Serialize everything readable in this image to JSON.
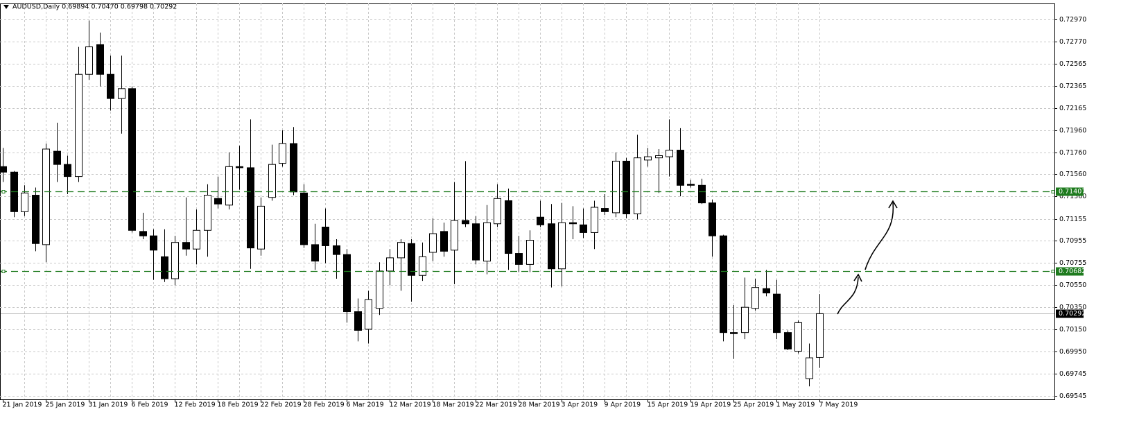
{
  "chart_data": {
    "type": "candlestick",
    "title": "AUDUSD,Daily  0.69894 0.70470 0.69798 0.70292",
    "categories": [
      "21 Jan 2019",
      null,
      null,
      null,
      "25 Jan 2019",
      null,
      null,
      null,
      "31 Jan 2019",
      null,
      null,
      null,
      "6 Feb 2019",
      null,
      null,
      null,
      "12 Feb 2019",
      null,
      null,
      null,
      "18 Feb 2019",
      null,
      null,
      null,
      "22 Feb 2019",
      null,
      null,
      null,
      "28 Feb 2019",
      null,
      null,
      null,
      "6 Mar 2019",
      null,
      null,
      null,
      "12 Mar 2019",
      null,
      null,
      null,
      "18 Mar 2019",
      null,
      null,
      null,
      "22 Mar 2019",
      null,
      null,
      null,
      "28 Mar 2019",
      null,
      null,
      null,
      "3 Apr 2019",
      null,
      null,
      null,
      "9 Apr 2019",
      null,
      null,
      null,
      "15 Apr 2019",
      null,
      null,
      null,
      "19 Apr 2019",
      null,
      null,
      null,
      "25 Apr 2019",
      null,
      null,
      null,
      "1 May 2019",
      null,
      null,
      null,
      "7 May 2019"
    ],
    "open": [
      0.7163,
      0.7158,
      0.7122,
      0.7137,
      0.7092,
      0.7177,
      0.7165,
      0.7154,
      0.7247,
      0.7274,
      0.7247,
      0.7225,
      0.7234,
      0.7104,
      0.71,
      0.7081,
      0.7061,
      0.7094,
      0.7088,
      0.7105,
      0.7134,
      0.7128,
      0.7163,
      0.7162,
      0.7088,
      0.7135,
      0.7166,
      0.7184,
      0.7139,
      0.7092,
      0.7108,
      0.7091,
      0.7083,
      0.7031,
      0.7015,
      0.7034,
      0.7068,
      0.708,
      0.7093,
      0.7064,
      0.7085,
      0.7104,
      0.7087,
      0.7114,
      0.7111,
      0.7077,
      0.7111,
      0.7132,
      0.7084,
      0.7074,
      0.7117,
      0.7111,
      0.707,
      0.7112,
      0.711,
      0.7103,
      0.7125,
      0.7121,
      0.7168,
      0.712,
      0.7169,
      0.7171,
      0.7172,
      0.7178,
      0.7147,
      0.7146,
      0.713,
      0.71,
      0.7012,
      0.7012,
      0.7034,
      0.7052,
      0.7047,
      0.7012,
      0.6995,
      0.697,
      0.69894
    ],
    "high": [
      0.718,
      0.7159,
      0.7146,
      0.7144,
      0.7184,
      0.7203,
      0.7173,
      0.7272,
      0.7296,
      0.7285,
      0.7264,
      0.7264,
      0.7236,
      0.7121,
      0.7106,
      0.7106,
      0.71,
      0.7135,
      0.7124,
      0.7147,
      0.7154,
      0.7176,
      0.7182,
      0.7206,
      0.7135,
      0.7183,
      0.7196,
      0.7199,
      0.7147,
      0.7111,
      0.7125,
      0.7097,
      0.7088,
      0.7043,
      0.705,
      0.7076,
      0.7088,
      0.7097,
      0.7097,
      0.7094,
      0.7116,
      0.7112,
      0.7149,
      0.7168,
      0.7118,
      0.7128,
      0.7147,
      0.7143,
      0.71,
      0.7105,
      0.7132,
      0.7129,
      0.713,
      0.7127,
      0.7125,
      0.7132,
      0.7138,
      0.7176,
      0.7171,
      0.7192,
      0.718,
      0.7179,
      0.7206,
      0.7198,
      0.7151,
      0.7152,
      0.7133,
      0.7101,
      0.7037,
      0.7062,
      0.7061,
      0.7069,
      0.706,
      0.7014,
      0.7023,
      0.7002,
      0.7047
    ],
    "low": [
      0.7149,
      0.7117,
      0.7118,
      0.7086,
      0.7076,
      0.7149,
      0.7138,
      0.7149,
      0.7242,
      0.7236,
      0.7214,
      0.7193,
      0.7103,
      0.7097,
      0.706,
      0.7058,
      0.7055,
      0.7082,
      0.7074,
      0.7081,
      0.7125,
      0.7124,
      0.7142,
      0.707,
      0.7082,
      0.7132,
      0.7163,
      0.7137,
      0.7089,
      0.7069,
      0.7075,
      0.7061,
      0.7021,
      0.7004,
      0.7002,
      0.7028,
      0.7055,
      0.705,
      0.704,
      0.7059,
      0.7077,
      0.7081,
      0.7056,
      0.7108,
      0.7074,
      0.7065,
      0.7108,
      0.7069,
      0.7067,
      0.7067,
      0.7108,
      0.7053,
      0.7054,
      0.7097,
      0.7098,
      0.7088,
      0.7119,
      0.7117,
      0.7116,
      0.7115,
      0.7163,
      0.7139,
      0.7154,
      0.7136,
      0.7144,
      0.7129,
      0.7081,
      0.7004,
      0.6988,
      0.7006,
      0.7032,
      0.7045,
      0.7006,
      0.6996,
      0.6993,
      0.6963,
      0.69798
    ],
    "close": [
      0.7158,
      0.7122,
      0.7139,
      0.7093,
      0.7179,
      0.7165,
      0.7154,
      0.7247,
      0.7272,
      0.7247,
      0.7225,
      0.7234,
      0.7105,
      0.71,
      0.7087,
      0.7061,
      0.7094,
      0.7088,
      0.7105,
      0.7137,
      0.7129,
      0.7163,
      0.7162,
      0.7089,
      0.7127,
      0.7165,
      0.7184,
      0.714,
      0.7092,
      0.7077,
      0.7091,
      0.7083,
      0.7031,
      0.7014,
      0.7042,
      0.7068,
      0.708,
      0.7094,
      0.7064,
      0.7081,
      0.7102,
      0.7086,
      0.7114,
      0.7111,
      0.7078,
      0.7112,
      0.7134,
      0.7084,
      0.7074,
      0.7096,
      0.711,
      0.707,
      0.7112,
      0.7111,
      0.7103,
      0.7126,
      0.7122,
      0.7168,
      0.712,
      0.7171,
      0.7172,
      0.7173,
      0.7178,
      0.7146,
      0.7146,
      0.713,
      0.71,
      0.7012,
      0.7011,
      0.7035,
      0.7053,
      0.7048,
      0.7012,
      0.6997,
      0.7021,
      0.6989,
      0.70292
    ],
    "up_color": "#ffffff",
    "down_color": "#000000",
    "levels": [
      {
        "value": 0.71407,
        "color": "#1e7b1e"
      },
      {
        "value": 0.70682,
        "color": "#1e7b1e"
      }
    ],
    "last_price": {
      "value": 0.70292,
      "color": "#c0c0c0"
    },
    "ylim": [
      0.69512,
      0.73115
    ],
    "yticks": [
      {
        "value": 0.7297,
        "label": "0.72970"
      },
      {
        "value": 0.7277,
        "label": "0.72770"
      },
      0.72565,
      0.72365,
      0.72165,
      {
        "value": 0.7196,
        "label": "0.71960"
      },
      {
        "value": 0.7176,
        "label": "0.71760"
      },
      {
        "value": 0.7156,
        "label": "0.71560"
      },
      {
        "value": 0.7136,
        "label": "0.71360"
      },
      0.71155,
      0.70955,
      0.70755,
      {
        "value": 0.7055,
        "label": "0.70550"
      },
      {
        "value": 0.7035,
        "label": "0.70350"
      },
      {
        "value": 0.7015,
        "label": "0.70150"
      },
      {
        "value": 0.6995,
        "label": "0.69950"
      },
      0.69745,
      0.69545
    ],
    "grid": true
  }
}
